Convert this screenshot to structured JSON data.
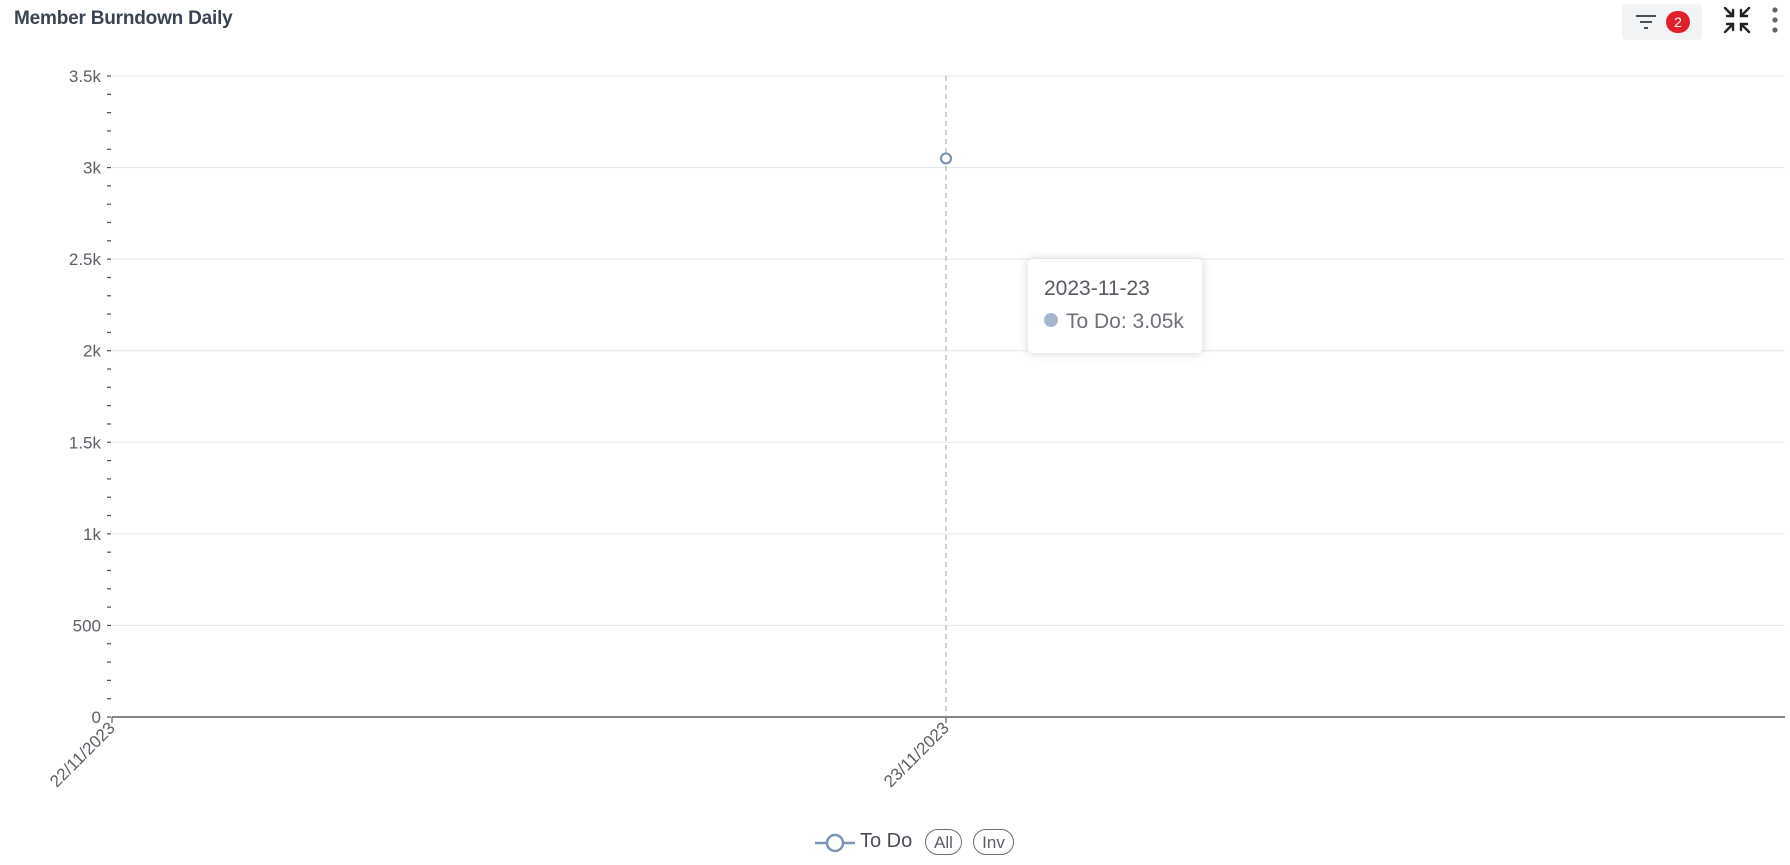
{
  "header": {
    "title": "Member Burndown Daily",
    "filter_count": "2"
  },
  "icons": {
    "filter": "filter-icon",
    "collapse": "collapse-arrows-icon",
    "more": "more-vertical-icon"
  },
  "colors": {
    "series": "#7b94b3",
    "tooltip_dot": "#a6b8ce",
    "badge": "#e0202a",
    "grid": "#e3e6ee",
    "axis": "#5b5f66"
  },
  "tooltip": {
    "date": "2023-11-23",
    "series_label": "To Do: 3.05k"
  },
  "legend": {
    "series_name": "To Do",
    "all_label": "All",
    "inv_label": "Inv"
  },
  "chart_data": {
    "type": "line",
    "title": "Member Burndown Daily",
    "x": [
      "22/11/2023",
      "23/11/2023"
    ],
    "series": [
      {
        "name": "To Do",
        "values": [
          null,
          3050
        ]
      }
    ],
    "yticks": [
      0,
      500,
      1000,
      1500,
      2000,
      2500,
      3000,
      3500
    ],
    "ytick_labels": [
      "0",
      "500",
      "1k",
      "1.5k",
      "2k",
      "2.5k",
      "3k",
      "3.5k"
    ],
    "ylim": [
      0,
      3500
    ],
    "xlabel": "",
    "ylabel": "",
    "grid": true,
    "legend_position": "bottom-center",
    "hover_index": 1
  }
}
